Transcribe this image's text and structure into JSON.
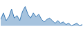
{
  "chart_data": {
    "type": "area",
    "values": [
      22,
      32,
      20,
      26,
      38,
      24,
      28,
      20,
      34,
      42,
      30,
      24,
      32,
      26,
      30,
      22,
      18,
      22,
      24,
      20,
      16,
      20,
      16,
      18,
      14,
      16,
      12,
      14,
      16,
      12,
      14
    ],
    "color": "#3a7ab5",
    "xlim": [
      0,
      30
    ],
    "ylim": [
      5,
      50
    ],
    "grid": false,
    "tick_labels": false
  }
}
